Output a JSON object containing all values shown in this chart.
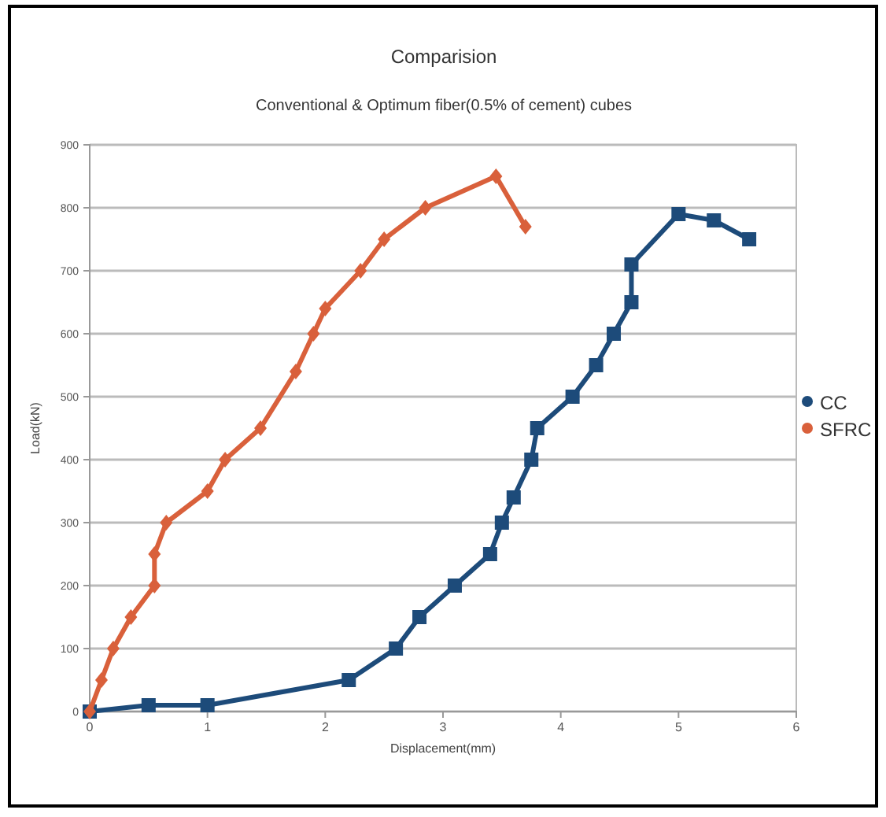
{
  "chart_data": {
    "type": "line",
    "title": "Comparision",
    "subtitle": "Conventional & Optimum fiber(0.5% of cement) cubes",
    "xlabel": "Displacement(mm)",
    "ylabel": "Load(kN)",
    "xlim": [
      0,
      6
    ],
    "xticks": [
      0,
      1,
      2,
      3,
      4,
      5,
      6
    ],
    "ylim": [
      0,
      900
    ],
    "yticks": [
      0,
      100,
      200,
      300,
      400,
      500,
      600,
      700,
      800,
      900
    ],
    "grid": "y",
    "legend": "right",
    "series": [
      {
        "name": "CC",
        "color": "#1d4b7a",
        "marker": "square",
        "x": [
          0,
          0.5,
          1,
          2.2,
          2.6,
          2.8,
          3.1,
          3.4,
          3.5,
          3.6,
          3.75,
          3.8,
          4.1,
          4.3,
          4.45,
          4.6,
          4.6,
          5,
          5.3,
          5.6
        ],
        "values": [
          0,
          10,
          10,
          50,
          100,
          150,
          200,
          250,
          300,
          340,
          400,
          450,
          500,
          550,
          600,
          650,
          710,
          790,
          780,
          750
        ]
      },
      {
        "name": "SFRC",
        "color": "#d9603b",
        "marker": "diamond",
        "x": [
          0,
          0.1,
          0.2,
          0.35,
          0.55,
          0.55,
          0.65,
          1,
          1.15,
          1.45,
          1.75,
          1.9,
          2,
          2.3,
          2.5,
          2.85,
          3.45,
          3.7
        ],
        "values": [
          0,
          50,
          100,
          150,
          200,
          250,
          300,
          350,
          400,
          450,
          540,
          600,
          640,
          700,
          750,
          800,
          850,
          770
        ]
      }
    ]
  }
}
